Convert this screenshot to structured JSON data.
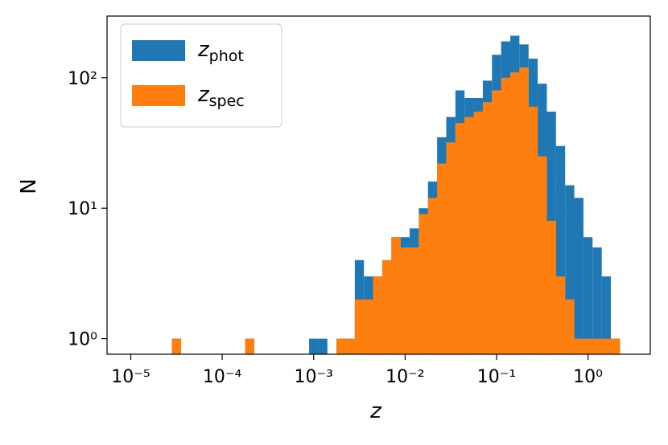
{
  "chart_data": {
    "type": "histogram",
    "xlabel": "z",
    "ylabel": "N",
    "log_x": true,
    "log_y": true,
    "legend": "upper left",
    "bins": [
      2.818e-05,
      3.548e-05,
      4.467e-05,
      5.623e-05,
      7.079e-05,
      8.913e-05,
      0.0001122,
      0.0001413,
      0.0001778,
      0.0002239,
      0.0002818,
      0.0003548,
      0.0004467,
      0.0005623,
      0.0007079,
      0.0008913,
      0.001122,
      0.001413,
      0.001778,
      0.002239,
      0.002818,
      0.003548,
      0.004467,
      0.005623,
      0.007079,
      0.008913,
      0.01122,
      0.01413,
      0.01778,
      0.02239,
      0.02818,
      0.03548,
      0.04467,
      0.05623,
      0.07079,
      0.08913,
      0.1122,
      0.1413,
      0.1778,
      0.2239,
      0.2818,
      0.3548,
      0.4467,
      0.5623,
      0.7079,
      0.8913,
      1.122,
      1.413,
      1.778,
      2.239
    ],
    "series": [
      {
        "name": "zphot",
        "color": "#1f77b4",
        "values": [
          1,
          0,
          0,
          0,
          0,
          0,
          0,
          0,
          1,
          0,
          0,
          0,
          0,
          0,
          0,
          1,
          1,
          0,
          1,
          1,
          4,
          3,
          3,
          4,
          6,
          6,
          7,
          10,
          16,
          35,
          50,
          80,
          70,
          70,
          95,
          150,
          190,
          210,
          180,
          140,
          90,
          55,
          30,
          15,
          12,
          6,
          5,
          3,
          1
        ]
      },
      {
        "name": "zspec",
        "color": "#ff7f0e",
        "values": [
          1,
          0,
          0,
          0,
          0,
          0,
          0,
          0,
          1,
          0,
          0,
          0,
          0,
          0,
          0,
          0,
          0,
          0,
          1,
          1,
          2,
          2,
          3,
          4,
          6,
          5,
          5,
          9,
          12,
          22,
          32,
          45,
          50,
          55,
          65,
          80,
          100,
          110,
          120,
          60,
          25,
          8,
          3,
          2,
          1,
          1,
          1,
          1,
          1
        ]
      }
    ],
    "xlim": [
      5.5e-06,
      4.8
    ],
    "ylim": [
      0.76,
      297
    ],
    "xticks": [
      {
        "value": 1e-05,
        "label": "10⁻⁵"
      },
      {
        "value": 0.0001,
        "label": "10⁻⁴"
      },
      {
        "value": 0.001,
        "label": "10⁻³"
      },
      {
        "value": 0.01,
        "label": "10⁻²"
      },
      {
        "value": 0.1,
        "label": "10⁻¹"
      },
      {
        "value": 1,
        "label": "10⁰"
      }
    ],
    "yticks": [
      {
        "value": 1,
        "label": "10⁰"
      },
      {
        "value": 10,
        "label": "10¹"
      },
      {
        "value": 100,
        "label": "10²"
      }
    ]
  }
}
